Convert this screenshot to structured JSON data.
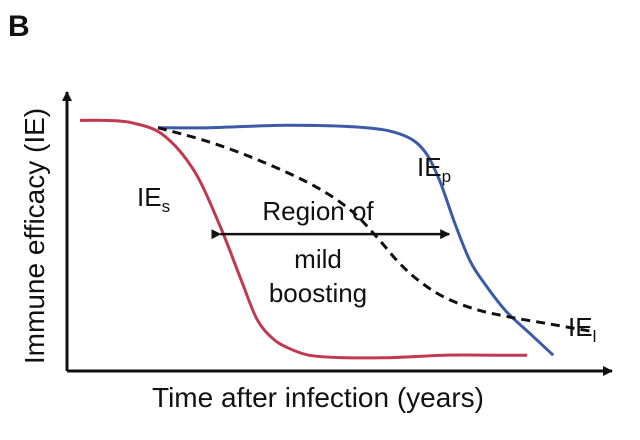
{
  "panel_label": "B",
  "chart_data": {
    "type": "line",
    "xlabel": "Time after infection (years)",
    "ylabel": "Immune efficacy (IE)",
    "xlim": [
      0,
      1
    ],
    "ylim": [
      0,
      1
    ],
    "grid": false,
    "legend": "none",
    "series": [
      {
        "name_main": "IE",
        "name_sub": "s",
        "color": "#c0394f",
        "dash": "solid",
        "x": [
          0.0,
          0.05,
          0.1,
          0.16,
          0.22,
          0.27,
          0.31,
          0.34,
          0.37,
          0.4,
          0.44,
          0.5,
          0.6,
          0.7,
          0.8,
          0.86
        ],
        "y": [
          0.99,
          0.99,
          0.98,
          0.93,
          0.78,
          0.55,
          0.33,
          0.17,
          0.09,
          0.05,
          0.02,
          0.01,
          0.01,
          0.02,
          0.02,
          0.02
        ]
      },
      {
        "name_main": "IE",
        "name_sub": "p",
        "color": "#3d5aa8",
        "dash": "solid",
        "x": [
          0.15,
          0.25,
          0.4,
          0.55,
          0.62,
          0.66,
          0.69,
          0.72,
          0.75,
          0.78,
          0.82,
          0.87,
          0.91
        ],
        "y": [
          0.96,
          0.96,
          0.97,
          0.96,
          0.93,
          0.87,
          0.75,
          0.57,
          0.41,
          0.31,
          0.2,
          0.1,
          0.02
        ]
      },
      {
        "name_main": "IE",
        "name_sub": "l",
        "color": "#111111",
        "dash": "dashed",
        "x": [
          0.15,
          0.25,
          0.35,
          0.45,
          0.52,
          0.57,
          0.61,
          0.65,
          0.7,
          0.76,
          0.82,
          0.9,
          0.98
        ],
        "y": [
          0.96,
          0.9,
          0.82,
          0.72,
          0.62,
          0.51,
          0.41,
          0.33,
          0.26,
          0.21,
          0.18,
          0.15,
          0.12
        ]
      }
    ],
    "annotations": {
      "region_line1": "Region of",
      "region_line2": "mild",
      "region_line3": "boosting",
      "region_arrow_x": [
        0.27,
        0.71
      ],
      "region_arrow_y": 0.52
    }
  }
}
